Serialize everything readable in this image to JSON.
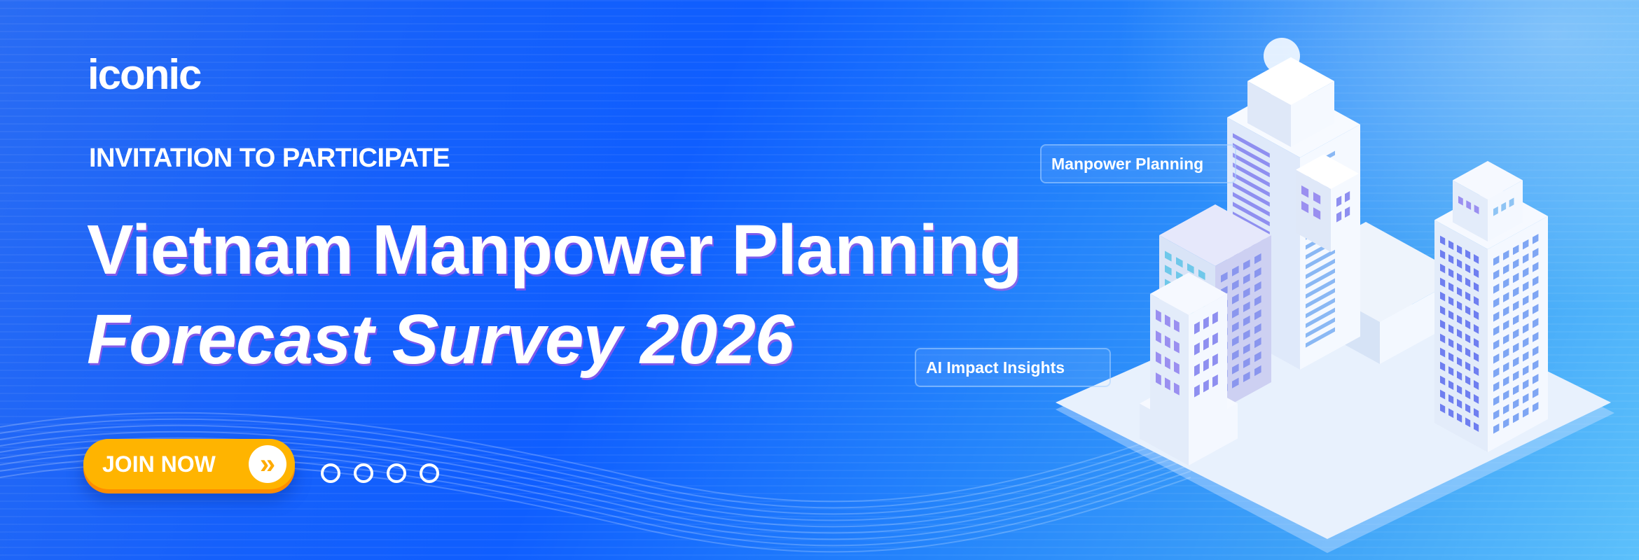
{
  "brand": {
    "logo": "iconic"
  },
  "hero": {
    "eyebrow": "INVITATION TO PARTICIPATE",
    "title_line1": "Vietnam Manpower Planning",
    "title_line2": "Forecast Survey 2026",
    "cta_label": "JOIN NOW",
    "cta_icon": "double-chevron-right-icon"
  },
  "carousel": {
    "dot_count": 4
  },
  "tags": [
    "Manpower Planning",
    "AI Impact Insights"
  ],
  "colors": {
    "background": "#0f5eff",
    "accent": "#ffb400",
    "accent_shadow": "#ff8c00",
    "text": "#ffffff"
  }
}
